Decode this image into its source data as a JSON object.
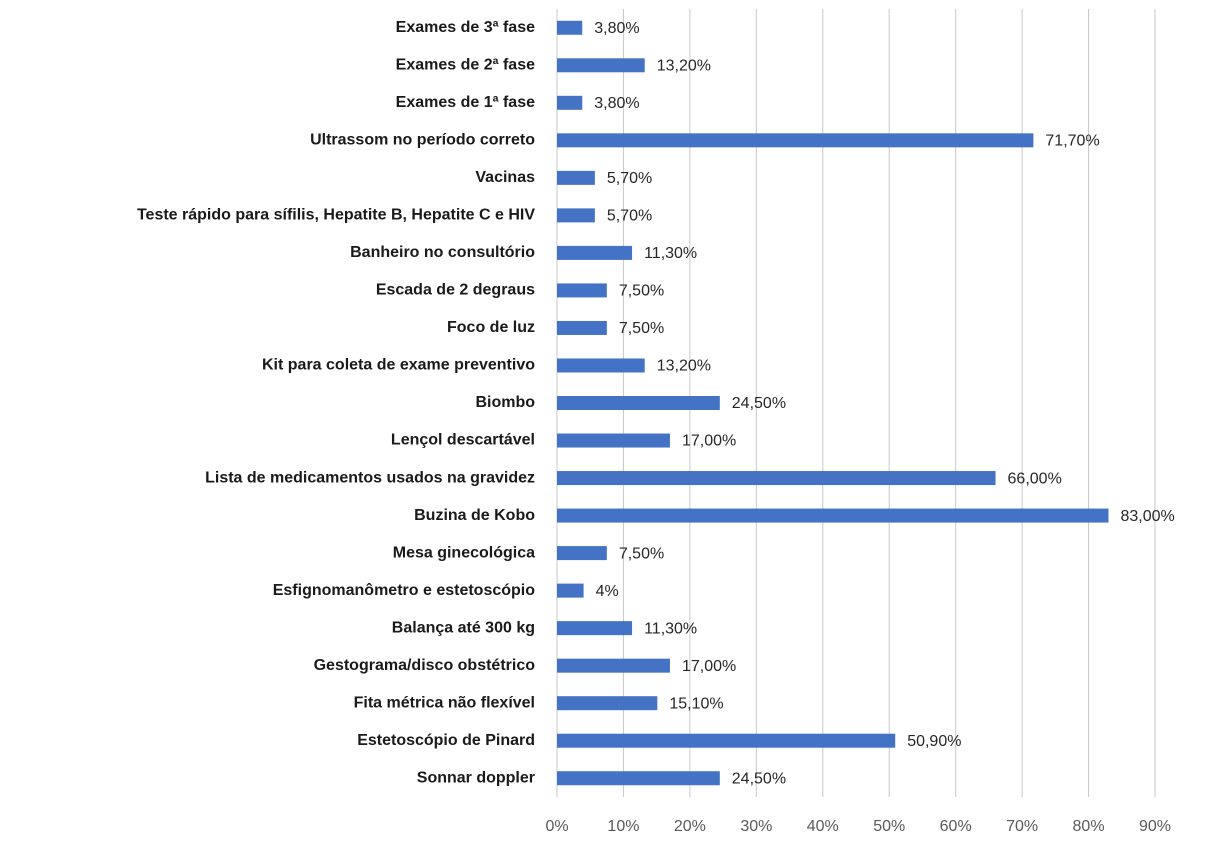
{
  "chart_data": {
    "type": "bar",
    "orientation": "horizontal",
    "categories": [
      "Exames de 3ª fase",
      "Exames de 2ª fase",
      "Exames de 1ª fase",
      "Ultrassom no período correto",
      "Vacinas",
      "Teste rápido para sífilis, Hepatite B, Hepatite C e HIV",
      "Banheiro no consultório",
      "Escada de 2 degraus",
      "Foco de luz",
      "Kit para coleta de exame preventivo",
      "Biombo",
      "Lençol descartável",
      "Lista de medicamentos usados na gravidez",
      "Buzina de Kobo",
      "Mesa ginecológica",
      "Esfignomanômetro e estetoscópio",
      "Balança até 300 kg",
      "Gestograma/disco obstétrico",
      "Fita métrica não flexível",
      "Estetoscópio de Pinard",
      "Sonnar doppler"
    ],
    "values": [
      3.8,
      13.2,
      3.8,
      71.7,
      5.7,
      5.7,
      11.3,
      7.5,
      7.5,
      13.2,
      24.5,
      17.0,
      66.0,
      83.0,
      7.5,
      4,
      11.3,
      17.0,
      15.1,
      50.9,
      24.5
    ],
    "value_labels": [
      "3,80%",
      "13,20%",
      "3,80%",
      "71,70%",
      "5,70%",
      "5,70%",
      "11,30%",
      "7,50%",
      "7,50%",
      "13,20%",
      "24,50%",
      "17,00%",
      "66,00%",
      "83,00%",
      "7,50%",
      "4%",
      "11,30%",
      "17,00%",
      "15,10%",
      "50,90%",
      "24,50%"
    ],
    "color": "#4472c4",
    "xlim": [
      0,
      90
    ],
    "xticks": [
      {
        "value": 0,
        "label": "0%"
      },
      {
        "value": 10,
        "label": "10%"
      },
      {
        "value": 20,
        "label": "20%"
      },
      {
        "value": 30,
        "label": "30%"
      },
      {
        "value": 40,
        "label": "40%"
      },
      {
        "value": 50,
        "label": "50%"
      },
      {
        "value": 60,
        "label": "60%"
      },
      {
        "value": 70,
        "label": "70%"
      },
      {
        "value": 80,
        "label": "80%"
      },
      {
        "value": 90,
        "label": "90%"
      }
    ],
    "grid": true
  }
}
